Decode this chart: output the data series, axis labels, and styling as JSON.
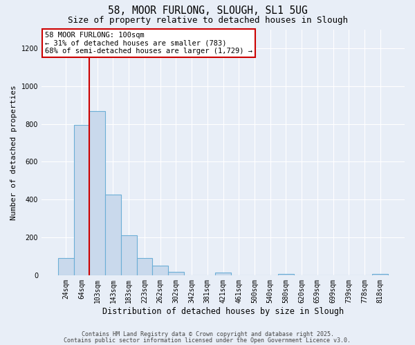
{
  "title": "58, MOOR FURLONG, SLOUGH, SL1 5UG",
  "subtitle": "Size of property relative to detached houses in Slough",
  "xlabel": "Distribution of detached houses by size in Slough",
  "ylabel": "Number of detached properties",
  "bar_categories": [
    "24sqm",
    "64sqm",
    "103sqm",
    "143sqm",
    "183sqm",
    "223sqm",
    "262sqm",
    "302sqm",
    "342sqm",
    "381sqm",
    "421sqm",
    "461sqm",
    "500sqm",
    "540sqm",
    "580sqm",
    "620sqm",
    "659sqm",
    "699sqm",
    "739sqm",
    "778sqm",
    "818sqm"
  ],
  "bar_values": [
    90,
    793,
    868,
    427,
    210,
    90,
    52,
    18,
    0,
    0,
    15,
    0,
    0,
    0,
    5,
    0,
    0,
    0,
    0,
    0,
    5
  ],
  "bar_color": "#c9d9ec",
  "bar_edgecolor": "#6baed6",
  "vline_x_index": 2,
  "vline_color": "#cc0000",
  "ylim": [
    0,
    1300
  ],
  "yticks": [
    0,
    200,
    400,
    600,
    800,
    1000,
    1200
  ],
  "bg_color": "#e8eef7",
  "plot_bg_color": "#e8eef7",
  "annotation_title": "58 MOOR FURLONG: 100sqm",
  "annotation_line1": "← 31% of detached houses are smaller (783)",
  "annotation_line2": "68% of semi-detached houses are larger (1,729) →",
  "annotation_box_facecolor": "#ffffff",
  "annotation_box_edgecolor": "#cc0000",
  "footer1": "Contains HM Land Registry data © Crown copyright and database right 2025.",
  "footer2": "Contains public sector information licensed under the Open Government Licence v3.0."
}
